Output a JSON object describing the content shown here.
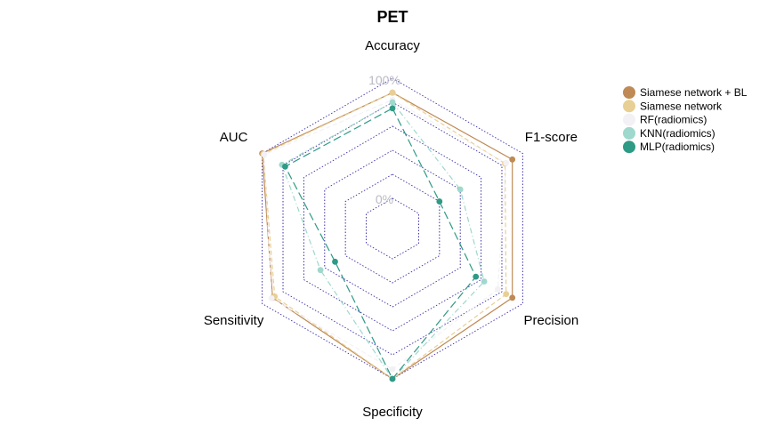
{
  "chart_data": {
    "type": "radar",
    "title": "PET",
    "axes": [
      "Accuracy",
      "F1-score",
      "Precision",
      "Specificity",
      "Sensitivity",
      "AUC"
    ],
    "range": [
      0,
      100
    ],
    "axis_min_label": "0%",
    "axis_max_label": "100%",
    "grid_levels": 5,
    "grid_style": "dotted",
    "grid_color": "#3b2fa8",
    "legend_position": "right",
    "series": [
      {
        "name": "Siamese network + BL",
        "color": "#bf8a55",
        "line": "solid",
        "values": [
          88,
          90,
          90,
          100,
          90,
          100
        ]
      },
      {
        "name": "Siamese network",
        "color": "#e8cf94",
        "line": "dashed",
        "values": [
          88,
          83,
          84,
          100,
          88,
          99
        ]
      },
      {
        "name": "RF(radiomics)",
        "color": "#f3f1f4",
        "line": "dashed",
        "values": [
          82,
          84,
          76,
          92,
          91,
          98
        ]
      },
      {
        "name": "KNN(radiomics)",
        "color": "#9fd8cc",
        "line": "dotdash",
        "values": [
          80,
          40,
          63,
          100,
          44,
          81
        ]
      },
      {
        "name": "MLP(radiomics)",
        "color": "#2f9a85",
        "line": "longdash",
        "values": [
          75,
          20,
          55,
          100,
          30,
          78
        ]
      }
    ]
  }
}
